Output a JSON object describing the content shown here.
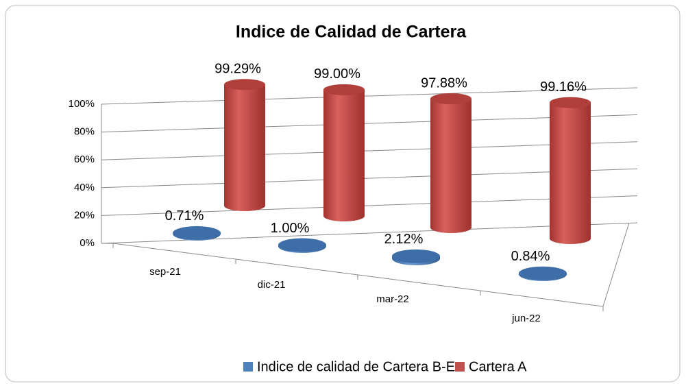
{
  "chart_data": {
    "type": "bar3d",
    "title": "Indice de Calidad de Cartera",
    "categories": [
      "sep-21",
      "dic-21",
      "mar-22",
      "jun-22"
    ],
    "series": [
      {
        "name": "Indice de calidad de Cartera B-E",
        "color": "#4f81bd",
        "values": [
          0.71,
          1.0,
          2.12,
          0.84
        ],
        "value_labels": [
          "0.71%",
          "1.00%",
          "2.12%",
          "0.84%"
        ]
      },
      {
        "name": "Cartera A",
        "color": "#c0504d",
        "values": [
          99.29,
          99.0,
          97.88,
          99.16
        ],
        "value_labels": [
          "99.29%",
          "99.00%",
          "97.88%",
          "99.16%"
        ]
      }
    ],
    "ylim": [
      0,
      100
    ],
    "yticks": [
      {
        "value": 0,
        "label": "0%"
      },
      {
        "value": 20,
        "label": "20%"
      },
      {
        "value": 40,
        "label": "40%"
      },
      {
        "value": 60,
        "label": "60%"
      },
      {
        "value": 80,
        "label": "80%"
      },
      {
        "value": 100,
        "label": "100%"
      }
    ],
    "grid": true,
    "legend": "bottom"
  }
}
